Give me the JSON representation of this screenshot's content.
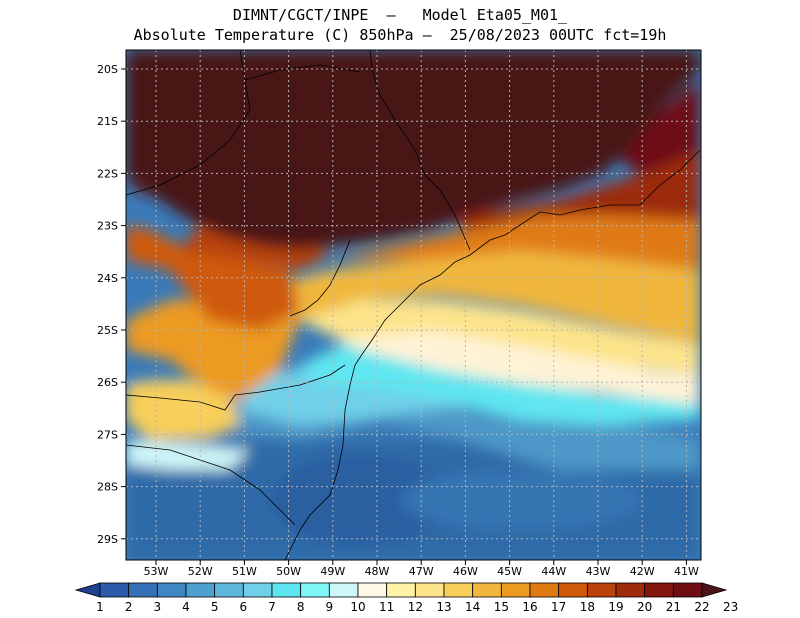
{
  "header": {
    "line1": "DIMNT/CGCT/INPE  –   Model Eta05_M01_",
    "line2": "Absolute Temperature (C) 850hPa –  25/08/2023 00UTC fct=19h"
  },
  "map": {
    "lat_labels": [
      "20S",
      "21S",
      "22S",
      "23S",
      "24S",
      "25S",
      "26S",
      "27S",
      "28S",
      "29S"
    ],
    "lon_labels": [
      "53W",
      "52W",
      "51W",
      "50W",
      "49W",
      "48W",
      "47W",
      "46W",
      "45W",
      "44W",
      "43W",
      "42W",
      "41W"
    ]
  },
  "colorbar": {
    "labels": [
      "1",
      "2",
      "3",
      "4",
      "5",
      "6",
      "7",
      "8",
      "9",
      "10",
      "11",
      "12",
      "13",
      "14",
      "15",
      "16",
      "17",
      "18",
      "19",
      "20",
      "21",
      "22",
      "23"
    ],
    "colors": [
      "#1f3f8f",
      "#2a5aa8",
      "#3470b5",
      "#3f86c2",
      "#4ea0d0",
      "#5fb8dc",
      "#6fd0e8",
      "#5ee6f0",
      "#7ff6f8",
      "#cff6f8",
      "#fff8e6",
      "#fff3a6",
      "#fde48a",
      "#f8cf5a",
      "#f1b73c",
      "#ec9a22",
      "#e07a12",
      "#cf5a0a",
      "#b8420a",
      "#9c2c0c",
      "#84180e",
      "#6e0e12",
      "#4a1418"
    ]
  }
}
